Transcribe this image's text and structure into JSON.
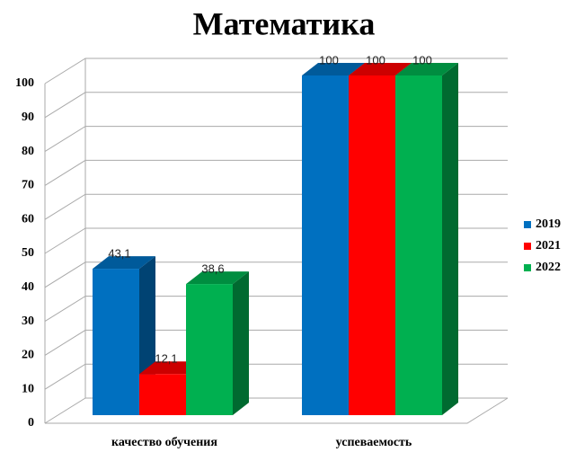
{
  "chart_data": {
    "type": "bar3d",
    "title": "Математика",
    "categories": [
      "качество обучения",
      "успеваемость"
    ],
    "series": [
      {
        "name": "2019",
        "color": "#0070c0",
        "values": [
          43.1,
          100
        ],
        "value_labels": [
          "43,1",
          "100"
        ]
      },
      {
        "name": "2021",
        "color": "#ff0000",
        "values": [
          12.1,
          100
        ],
        "value_labels": [
          "12,1",
          "100"
        ]
      },
      {
        "name": "2022",
        "color": "#00b050",
        "values": [
          38.6,
          100
        ],
        "value_labels": [
          "38,6",
          "100"
        ]
      }
    ],
    "ylim": [
      0,
      100
    ],
    "yticks": [
      0,
      10,
      20,
      30,
      40,
      50,
      60,
      70,
      80,
      90,
      100
    ],
    "grid": true,
    "legend": "right"
  }
}
